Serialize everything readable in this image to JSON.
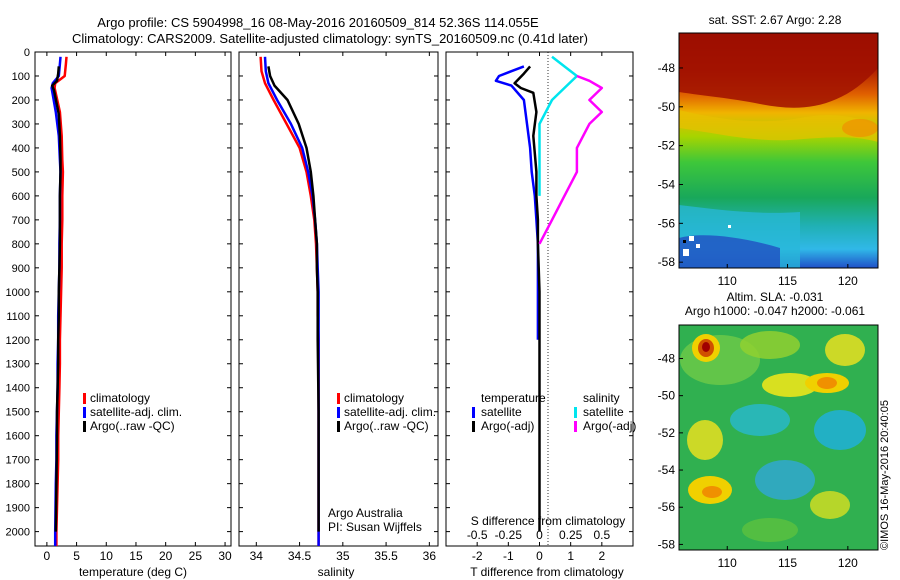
{
  "header": {
    "line1": "Argo profile: CS 5904998_16 08-May-2016 20160509_814 52.36S 114.055E",
    "line2": "Climatology: CARS2009. Satellite-adjusted climatology: synTS_20160509.nc (0.41d later)"
  },
  "footer": {
    "credit": "Argo Australia",
    "pi": "PI: Susan Wijffels",
    "stamp": "©IMOS 16-May-2016 20:40:05"
  },
  "colors": {
    "climatology": "#ff0000",
    "satellite": "#0000ff",
    "argo": "#000000",
    "sal_satellite": "#00e5ee",
    "sal_argo": "#ff00ff"
  },
  "chart_data": [
    {
      "id": "temperature",
      "type": "line",
      "xlabel": "temperature (deg C)",
      "xlim": [
        -2,
        31
      ],
      "ylim": [
        2060,
        0
      ],
      "xticks": [
        0,
        5,
        10,
        15,
        20,
        25,
        30
      ],
      "yticks": [
        0,
        100,
        200,
        300,
        400,
        500,
        600,
        700,
        800,
        900,
        1000,
        1100,
        1200,
        1300,
        1400,
        1500,
        1600,
        1700,
        1800,
        1900,
        2000
      ],
      "legend": [
        "climatology",
        "satellite-adj. clim.",
        "Argo(..raw -QC)"
      ],
      "series": [
        {
          "name": "climatology",
          "color": "#ff0000",
          "x": [
            3.3,
            3.2,
            3.0,
            1.4,
            1.3,
            2.2,
            2.5,
            2.6,
            2.7,
            2.6,
            2.6,
            2.5,
            2.5,
            2.4,
            2.3,
            2.2,
            2.2,
            2.1,
            2.0,
            1.9,
            1.9,
            1.8,
            1.6,
            1.6
          ],
          "y": [
            20,
            50,
            100,
            130,
            150,
            250,
            350,
            450,
            500,
            600,
            700,
            800,
            900,
            1000,
            1100,
            1200,
            1300,
            1400,
            1500,
            1600,
            1700,
            1800,
            2000,
            2060
          ]
        },
        {
          "name": "satellite-adj. clim.",
          "color": "#0000ff",
          "x": [
            2.3,
            2.2,
            2.0,
            1.0,
            0.8,
            1.5,
            2.0,
            2.2,
            2.3,
            2.2,
            2.2,
            2.1,
            2.1,
            2.0,
            1.9,
            1.9,
            1.8,
            1.8,
            1.7,
            1.6,
            1.6,
            1.5,
            1.4,
            1.4
          ],
          "y": [
            20,
            50,
            100,
            130,
            150,
            250,
            350,
            450,
            500,
            600,
            700,
            800,
            900,
            1000,
            1100,
            1200,
            1300,
            1400,
            1500,
            1600,
            1700,
            1800,
            2000,
            2060
          ]
        },
        {
          "name": "Argo(..raw -QC)",
          "color": "#000000",
          "x": [
            2.0,
            1.9,
            1.7,
            0.9,
            1.2,
            2.0,
            2.2,
            2.3,
            2.3,
            2.2,
            2.2,
            2.2,
            2.1,
            2.0,
            2.0,
            1.9,
            1.9,
            1.8,
            1.7,
            1.7,
            1.6,
            1.5
          ],
          "y": [
            60,
            90,
            120,
            140,
            160,
            260,
            350,
            450,
            500,
            600,
            700,
            800,
            900,
            1000,
            1100,
            1200,
            1300,
            1400,
            1500,
            1600,
            1800,
            2000
          ]
        }
      ]
    },
    {
      "id": "salinity",
      "type": "line",
      "xlabel": "salinity",
      "xlim": [
        33.8,
        36.1
      ],
      "ylim": [
        2060,
        0
      ],
      "xticks": [
        34,
        34.5,
        35,
        35.5,
        36
      ],
      "legend": [
        "climatology",
        "satellite-adj. clim.",
        "Argo(..raw -QC)"
      ],
      "series": [
        {
          "name": "climatology",
          "color": "#ff0000",
          "x": [
            34.05,
            34.06,
            34.1,
            34.2,
            34.35,
            34.5,
            34.58,
            34.63,
            34.67,
            34.69,
            34.7,
            34.71,
            34.71,
            34.72,
            34.72,
            34.72,
            34.72,
            34.72,
            34.72,
            34.72
          ],
          "y": [
            20,
            80,
            130,
            200,
            300,
            400,
            500,
            600,
            700,
            800,
            900,
            1000,
            1100,
            1200,
            1300,
            1500,
            1700,
            1800,
            2000,
            2060
          ]
        },
        {
          "name": "satellite-adj. clim.",
          "color": "#0000ff",
          "x": [
            34.1,
            34.11,
            34.14,
            34.24,
            34.4,
            34.53,
            34.6,
            34.65,
            34.68,
            34.7,
            34.71,
            34.72,
            34.72,
            34.72,
            34.72,
            34.72,
            34.72,
            34.72,
            34.72,
            34.72
          ],
          "y": [
            20,
            80,
            130,
            200,
            300,
            400,
            500,
            600,
            700,
            800,
            900,
            1000,
            1100,
            1200,
            1300,
            1500,
            1700,
            1800,
            2000,
            2060
          ]
        },
        {
          "name": "Argo(..raw -QC)",
          "color": "#000000",
          "x": [
            34.14,
            34.16,
            34.21,
            34.36,
            34.49,
            34.58,
            34.63,
            34.66,
            34.68,
            34.7,
            34.7,
            34.71,
            34.71,
            34.72,
            34.72,
            34.72
          ],
          "y": [
            60,
            100,
            140,
            200,
            300,
            400,
            500,
            600,
            700,
            800,
            900,
            1000,
            1200,
            1500,
            1800,
            2000
          ]
        }
      ]
    },
    {
      "id": "differences",
      "type": "line",
      "xlabel": "T difference from climatology",
      "x2label": "S difference from climatology",
      "xlim": [
        -3,
        3
      ],
      "ylim": [
        2060,
        0
      ],
      "xticks": [
        -2,
        -1,
        0,
        1,
        2
      ],
      "x2ticks": [
        -0.5,
        -0.25,
        0,
        0.25,
        0.5
      ],
      "legend_groups": [
        "temperature",
        "salinity"
      ],
      "legend": [
        "satellite",
        "Argo(-adj)",
        "satellite",
        "Argo(-adj)"
      ],
      "series": [
        {
          "name": "satellite",
          "group": "temperature",
          "color": "#0000ff",
          "x": [
            -0.5,
            -0.9,
            -1.3,
            -1.4,
            -0.9,
            -0.5,
            -0.4,
            -0.3,
            -0.25,
            -0.15,
            -0.1,
            -0.05,
            -0.05,
            -0.05
          ],
          "y": [
            60,
            80,
            100,
            120,
            140,
            200,
            300,
            400,
            500,
            600,
            700,
            800,
            1000,
            1200
          ]
        },
        {
          "name": "Argo(-adj)",
          "group": "temperature",
          "color": "#000000",
          "x": [
            -0.3,
            -0.5,
            -0.8,
            -0.6,
            -0.2,
            -0.1,
            -0.2,
            -0.1,
            -0.1,
            -0.05,
            -0.05,
            0.0,
            0.0,
            0.0,
            0.0
          ],
          "y": [
            60,
            90,
            130,
            150,
            170,
            250,
            350,
            500,
            600,
            700,
            800,
            1000,
            1400,
            1800,
            2000
          ]
        },
        {
          "name": "satellite",
          "group": "salinity",
          "color": "#00e5ee",
          "x": [
            0.1,
            0.2,
            0.3,
            0.2,
            0.1,
            0.0,
            0.0,
            0.0,
            0.0
          ],
          "y": [
            20,
            60,
            100,
            150,
            200,
            300,
            400,
            500,
            600
          ]
        },
        {
          "name": "Argo(-adj)",
          "group": "salinity",
          "color": "#ff00ff",
          "x": [
            0.3,
            0.4,
            0.5,
            0.4,
            0.5,
            0.4,
            0.3,
            0.3,
            0.2,
            0.1,
            0.0
          ],
          "y": [
            100,
            120,
            150,
            200,
            250,
            300,
            400,
            500,
            600,
            700,
            800
          ]
        }
      ]
    },
    {
      "id": "sst_map",
      "type": "heatmap",
      "title": "sat. SST: 2.67 Argo: 2.28",
      "xticks": [
        110,
        115,
        120
      ],
      "yticks": [
        -48,
        -50,
        -52,
        -54,
        -56,
        -58
      ],
      "xlim": [
        106,
        122.5
      ],
      "ylim": [
        -58.3,
        -46.2
      ]
    },
    {
      "id": "sla_map",
      "type": "heatmap",
      "title": "Altim. SLA: -0.031",
      "subtitle": "Argo h1000: -0.047 h2000: -0.061",
      "xticks": [
        110,
        115,
        120
      ],
      "yticks": [
        -48,
        -50,
        -52,
        -54,
        -56,
        -58
      ],
      "xlim": [
        106,
        122.5
      ],
      "ylim": [
        -58.3,
        -46.2
      ]
    }
  ]
}
